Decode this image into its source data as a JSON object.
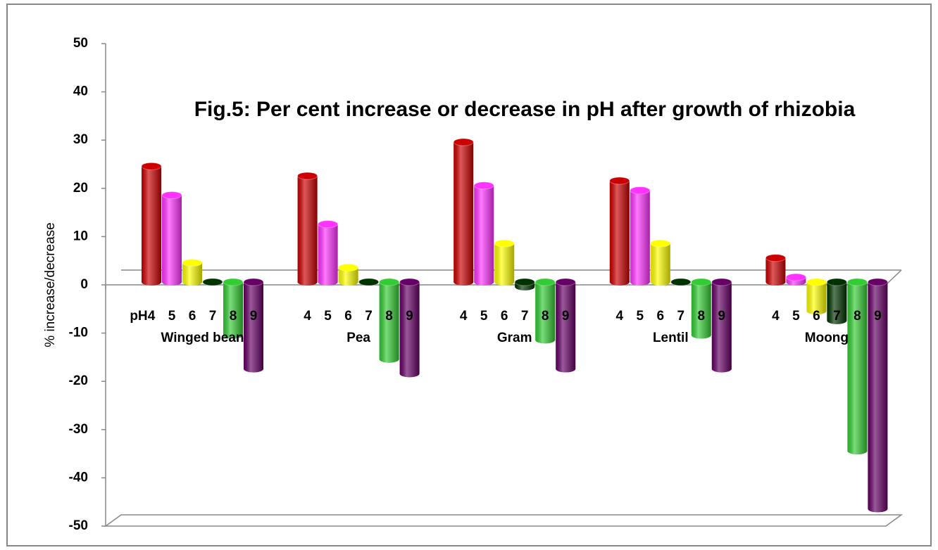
{
  "chart_data": {
    "type": "bar3d",
    "title": "Fig.5: Per cent increase or decrease in  pH after growth of rhizobia",
    "y_label": "% increase/decrease",
    "group_prefix": "pH",
    "categories": [
      "Winged bean",
      "Pea",
      "Gram",
      "Lentil",
      "Moong"
    ],
    "series": [
      {
        "name": "4",
        "color": "#cc0000",
        "values": [
          24,
          22,
          29,
          21,
          5
        ]
      },
      {
        "name": "5",
        "color": "#ff33ff",
        "values": [
          18,
          12,
          20,
          19,
          1
        ]
      },
      {
        "name": "6",
        "color": "#ffff00",
        "values": [
          4,
          3,
          8,
          8,
          -6
        ]
      },
      {
        "name": "7",
        "color": "#003300",
        "values": [
          0,
          0,
          -1,
          0,
          -8
        ]
      },
      {
        "name": "8",
        "color": "#33cc33",
        "values": [
          -11,
          -16,
          -12,
          -11,
          -35
        ]
      },
      {
        "name": "9",
        "color": "#660066",
        "values": [
          -18,
          -19,
          -18,
          -18,
          -47
        ]
      }
    ],
    "ylim": [
      -50,
      50
    ],
    "yticks": [
      -50,
      -40,
      -30,
      -20,
      -10,
      0,
      10,
      20,
      30,
      40,
      50
    ]
  }
}
